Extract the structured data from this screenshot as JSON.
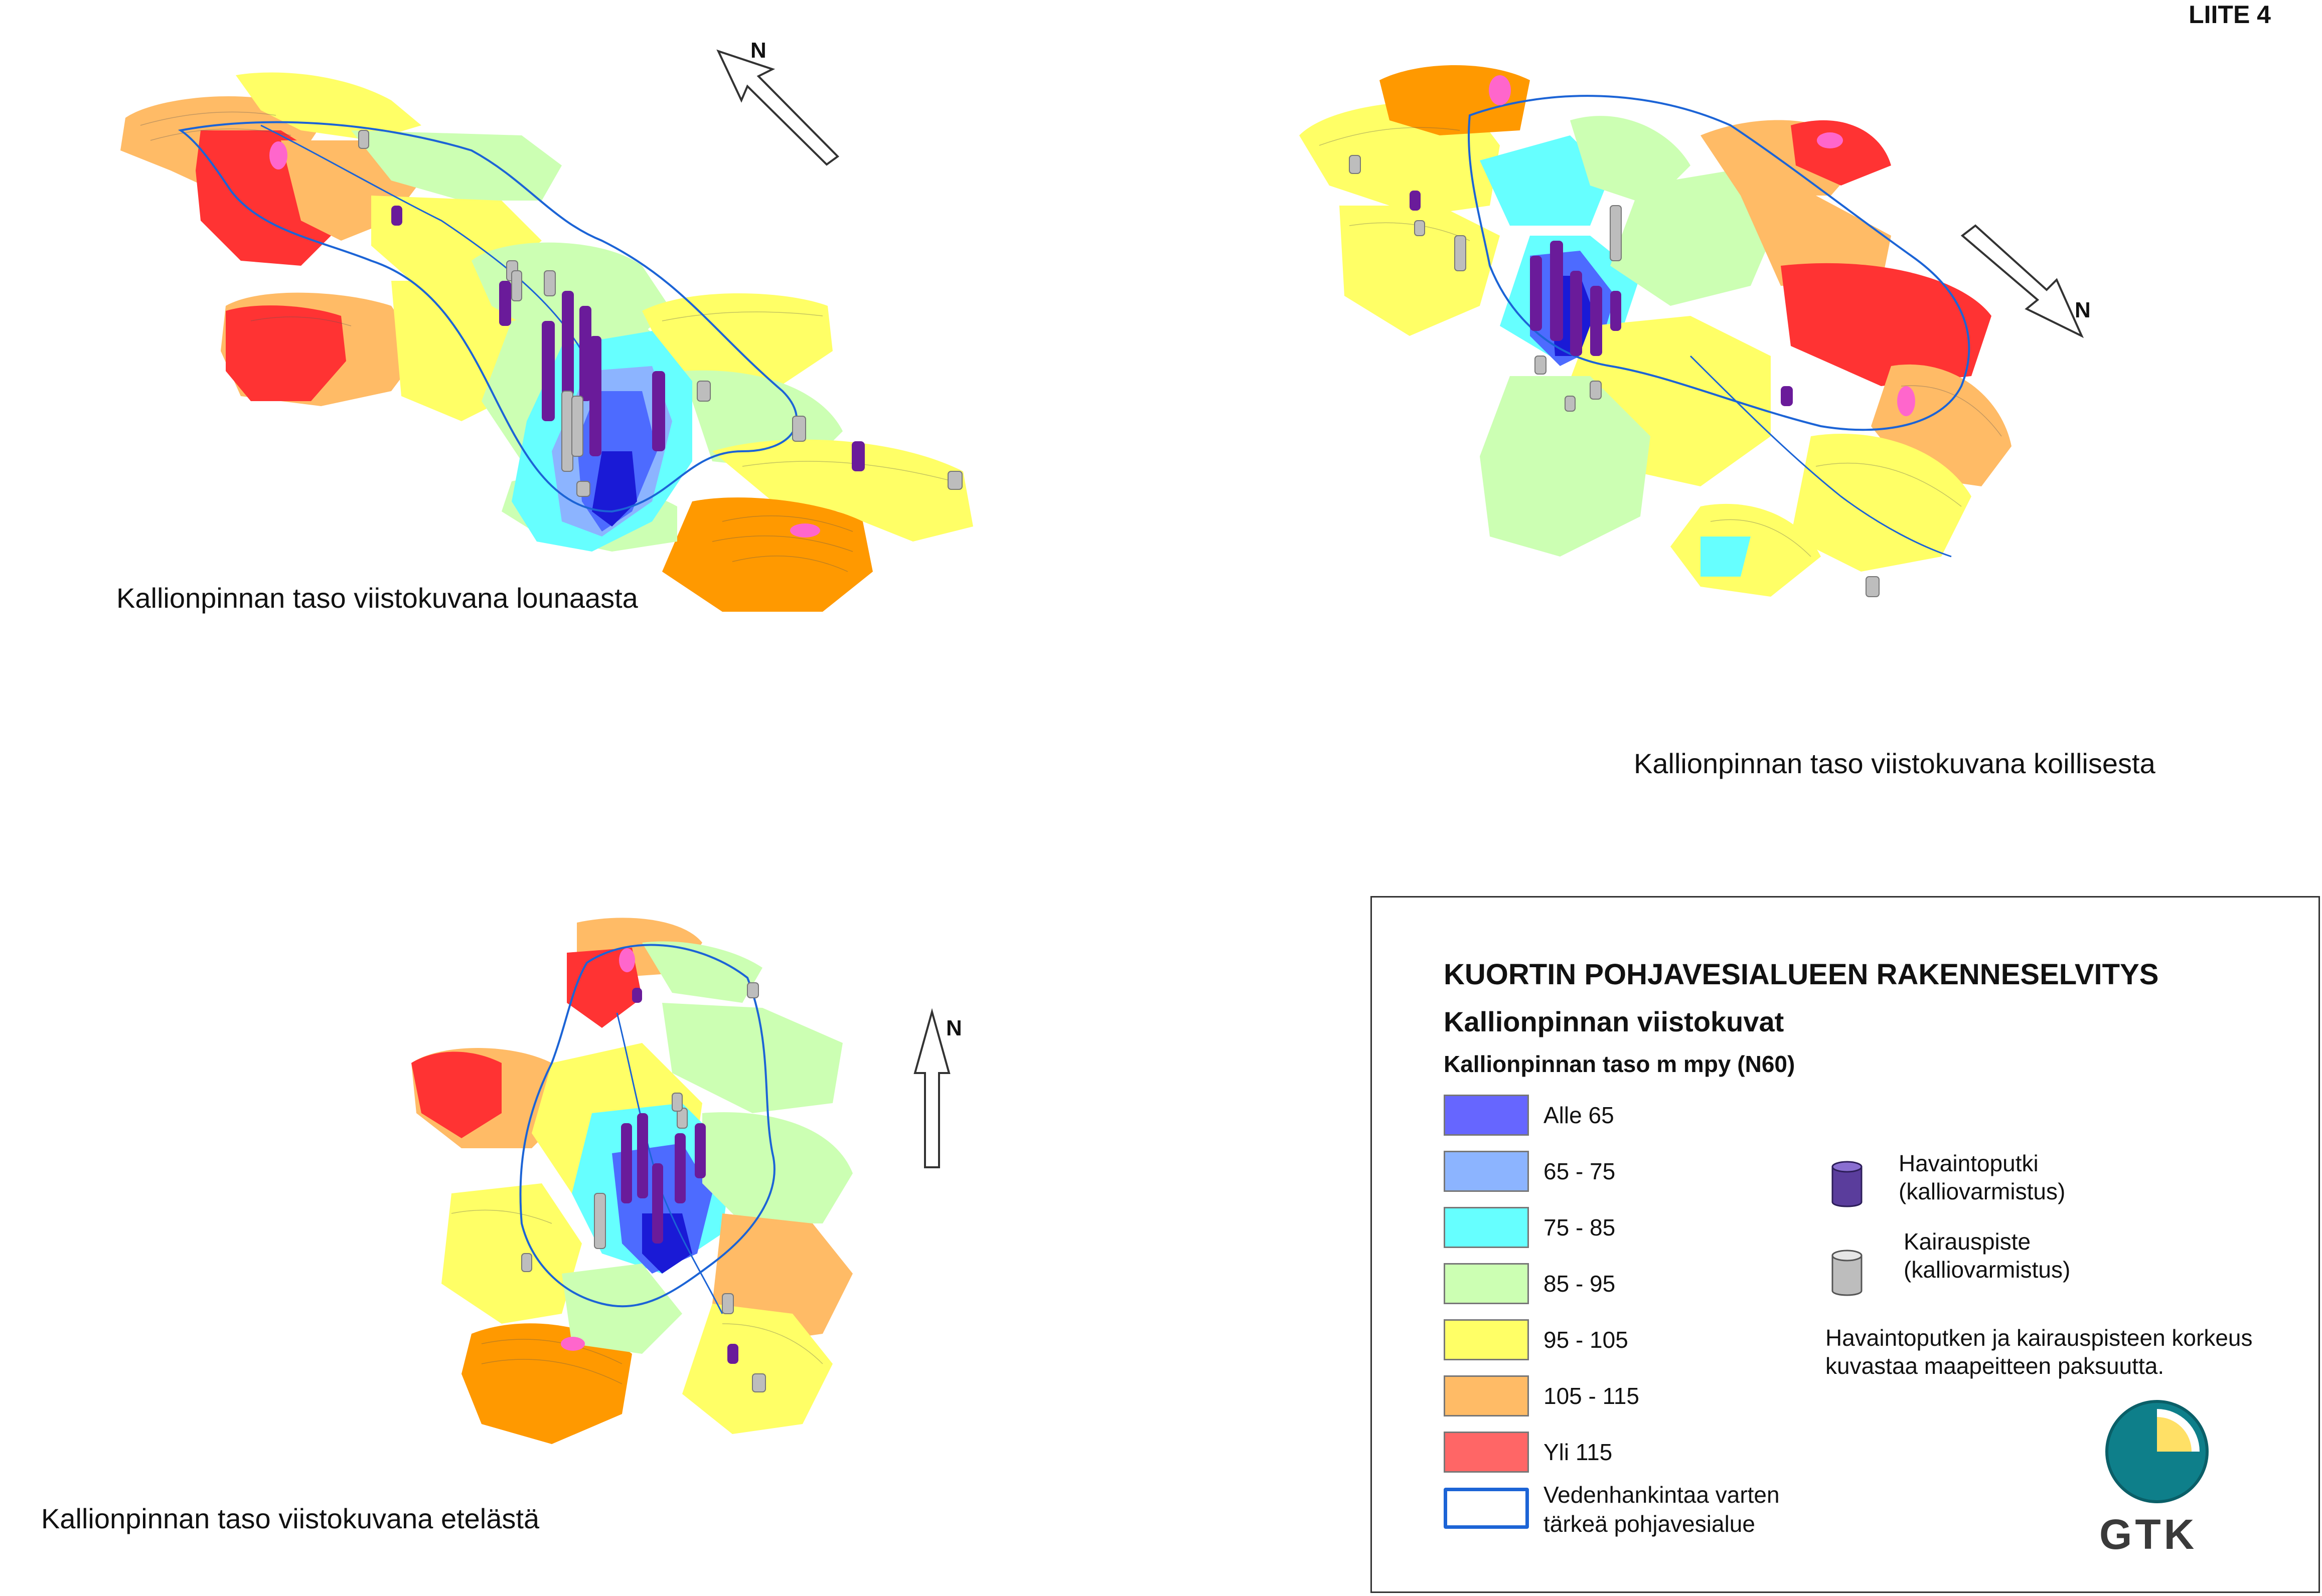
{
  "sheet_label": "LIITE 4",
  "views": [
    {
      "caption": "Kallionpinnan taso viistokuvana lounaasta",
      "north": "N"
    },
    {
      "caption": "Kallionpinnan taso viistokuvana koillisesta",
      "north": "N"
    },
    {
      "caption": "Kallionpinnan taso viistokuvana etelästä",
      "north": "N"
    }
  ],
  "legend": {
    "title": "KUORTIN POHJAVESIALUEEN RAKENNESELVITYS",
    "subtitle": "Kallionpinnan viistokuvat",
    "unit_title": "Kallionpinnan taso m mpy (N60)",
    "classes": [
      {
        "label": "Alle 65",
        "color": "#6666ff"
      },
      {
        "label": "65 - 75",
        "color": "#8cb4ff"
      },
      {
        "label": "75 - 85",
        "color": "#66ffff"
      },
      {
        "label": "85 - 95",
        "color": "#ccffb3"
      },
      {
        "label": "95 - 105",
        "color": "#ffff66"
      },
      {
        "label": "105 - 115",
        "color": "#ffbb66"
      },
      {
        "label": "Yli 115",
        "color": "#ff6666"
      }
    ],
    "area_line": {
      "label_1": "Vedenhankintaa varten",
      "label_2": "tärkeä pohjavesialue",
      "color": "#1c64d6"
    },
    "symbols": [
      {
        "label_1": "Havaintoputki",
        "label_2": "(kalliovarmistus)",
        "icon": "purple-cylinder",
        "color": "#5a3d9c"
      },
      {
        "label_1": "Kairauspiste",
        "label_2": "(kalliovarmistus)",
        "icon": "grey-cylinder",
        "color": "#bdbdbd"
      }
    ],
    "note_1": "Havaintoputken ja kairauspisteen korkeus",
    "note_2": "kuvastaa maapeitteen paksuutta.",
    "logo_text": "GTK"
  }
}
